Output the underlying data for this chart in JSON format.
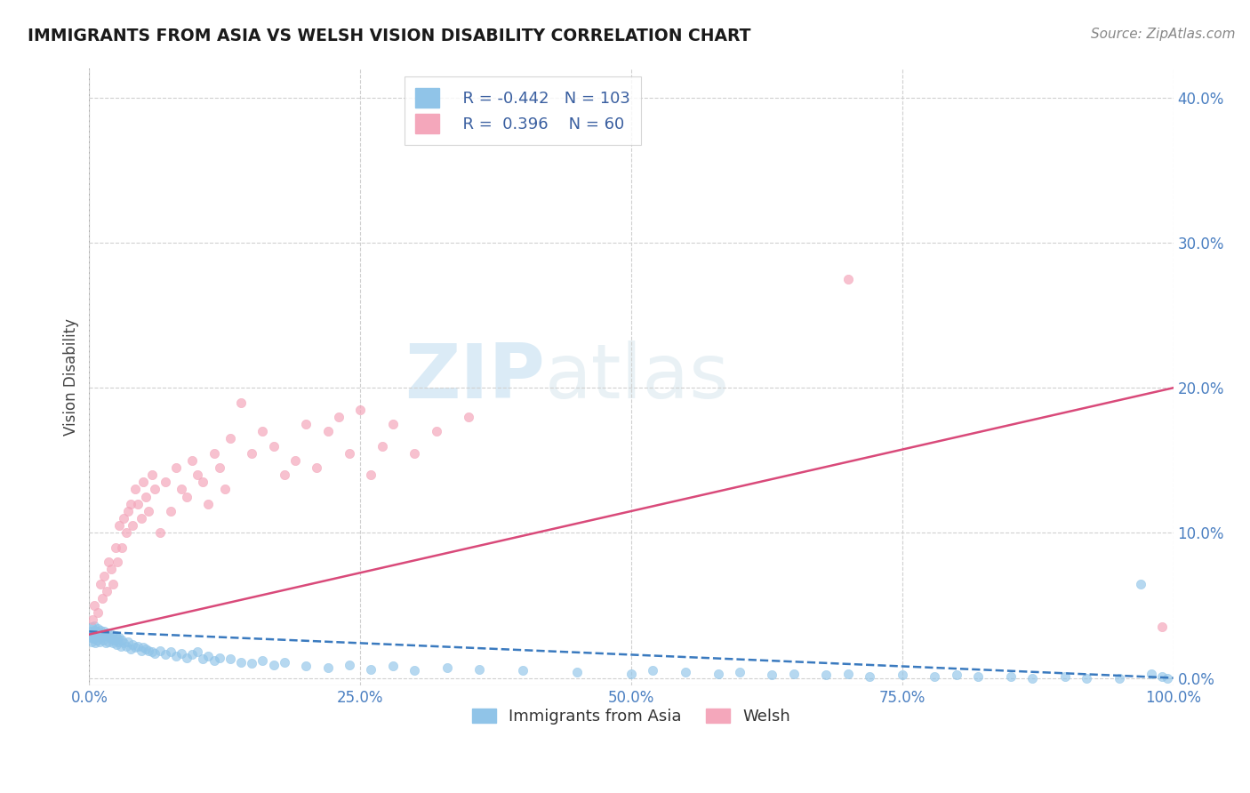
{
  "title": "IMMIGRANTS FROM ASIA VS WELSH VISION DISABILITY CORRELATION CHART",
  "source": "Source: ZipAtlas.com",
  "ylabel": "Vision Disability",
  "legend_label1": "Immigrants from Asia",
  "legend_label2": "Welsh",
  "R1": -0.442,
  "N1": 103,
  "R2": 0.396,
  "N2": 60,
  "color1": "#90c4e8",
  "color2": "#f4a7bb",
  "trend_color1": "#3a7abf",
  "trend_color2": "#d94a7a",
  "xmin": 0.0,
  "xmax": 100.0,
  "ymin": -0.5,
  "ymax": 42.0,
  "yticks": [
    0,
    10,
    20,
    30,
    40
  ],
  "ytick_labels": [
    "0.0%",
    "10.0%",
    "20.0%",
    "30.0%",
    "40.0%"
  ],
  "xticks": [
    0,
    25,
    50,
    75,
    100
  ],
  "xtick_labels": [
    "0.0%",
    "25.0%",
    "50.0%",
    "75.0%",
    "100.0%"
  ],
  "watermark_zip": "ZIP",
  "watermark_atlas": "atlas",
  "background": "#ffffff",
  "grid_color": "#d0d0d0",
  "scatter1_x": [
    0.1,
    0.15,
    0.2,
    0.25,
    0.3,
    0.35,
    0.4,
    0.45,
    0.5,
    0.55,
    0.6,
    0.65,
    0.7,
    0.75,
    0.8,
    0.85,
    0.9,
    0.95,
    1.0,
    1.1,
    1.2,
    1.3,
    1.4,
    1.5,
    1.6,
    1.7,
    1.8,
    1.9,
    2.0,
    2.1,
    2.2,
    2.3,
    2.4,
    2.5,
    2.6,
    2.7,
    2.8,
    2.9,
    3.0,
    3.2,
    3.4,
    3.6,
    3.8,
    4.0,
    4.2,
    4.5,
    4.8,
    5.0,
    5.2,
    5.5,
    5.8,
    6.0,
    6.5,
    7.0,
    7.5,
    8.0,
    8.5,
    9.0,
    9.5,
    10.0,
    10.5,
    11.0,
    11.5,
    12.0,
    13.0,
    14.0,
    15.0,
    16.0,
    17.0,
    18.0,
    20.0,
    22.0,
    24.0,
    26.0,
    28.0,
    30.0,
    33.0,
    36.0,
    40.0,
    45.0,
    50.0,
    52.0,
    55.0,
    58.0,
    60.0,
    63.0,
    65.0,
    68.0,
    70.0,
    72.0,
    75.0,
    78.0,
    80.0,
    82.0,
    85.0,
    87.0,
    90.0,
    92.0,
    95.0,
    97.0,
    99.0,
    99.5,
    98.0
  ],
  "scatter1_y": [
    2.8,
    3.2,
    2.5,
    3.5,
    2.9,
    3.1,
    2.7,
    3.3,
    3.6,
    2.4,
    3.0,
    2.8,
    3.2,
    2.6,
    3.4,
    2.9,
    3.1,
    2.5,
    3.3,
    2.8,
    3.0,
    2.6,
    3.2,
    2.4,
    2.9,
    3.1,
    2.5,
    2.8,
    2.7,
    3.0,
    2.4,
    2.6,
    2.9,
    2.3,
    2.7,
    2.5,
    2.8,
    2.2,
    2.6,
    2.4,
    2.2,
    2.5,
    2.0,
    2.3,
    2.1,
    2.2,
    1.9,
    2.1,
    2.0,
    1.9,
    1.8,
    1.7,
    1.9,
    1.6,
    1.8,
    1.5,
    1.7,
    1.4,
    1.6,
    1.8,
    1.3,
    1.5,
    1.2,
    1.4,
    1.3,
    1.1,
    1.0,
    1.2,
    0.9,
    1.1,
    0.8,
    0.7,
    0.9,
    0.6,
    0.8,
    0.5,
    0.7,
    0.6,
    0.5,
    0.4,
    0.3,
    0.5,
    0.4,
    0.3,
    0.4,
    0.2,
    0.3,
    0.2,
    0.3,
    0.1,
    0.2,
    0.1,
    0.2,
    0.1,
    0.1,
    0.0,
    0.1,
    0.0,
    0.0,
    6.5,
    0.1,
    0.0,
    0.3
  ],
  "scatter2_x": [
    0.3,
    0.5,
    0.8,
    1.0,
    1.2,
    1.4,
    1.6,
    1.8,
    2.0,
    2.2,
    2.4,
    2.6,
    2.8,
    3.0,
    3.2,
    3.4,
    3.6,
    3.8,
    4.0,
    4.2,
    4.5,
    4.8,
    5.0,
    5.2,
    5.5,
    5.8,
    6.0,
    6.5,
    7.0,
    7.5,
    8.0,
    8.5,
    9.0,
    9.5,
    10.0,
    10.5,
    11.0,
    11.5,
    12.0,
    12.5,
    13.0,
    14.0,
    15.0,
    16.0,
    17.0,
    18.0,
    19.0,
    20.0,
    21.0,
    22.0,
    23.0,
    24.0,
    25.0,
    26.0,
    27.0,
    28.0,
    30.0,
    32.0,
    35.0,
    99.0
  ],
  "scatter2_y": [
    4.0,
    5.0,
    4.5,
    6.5,
    5.5,
    7.0,
    6.0,
    8.0,
    7.5,
    6.5,
    9.0,
    8.0,
    10.5,
    9.0,
    11.0,
    10.0,
    11.5,
    12.0,
    10.5,
    13.0,
    12.0,
    11.0,
    13.5,
    12.5,
    11.5,
    14.0,
    13.0,
    10.0,
    13.5,
    11.5,
    14.5,
    13.0,
    12.5,
    15.0,
    14.0,
    13.5,
    12.0,
    15.5,
    14.5,
    13.0,
    16.5,
    19.0,
    15.5,
    17.0,
    16.0,
    14.0,
    15.0,
    17.5,
    14.5,
    17.0,
    18.0,
    15.5,
    18.5,
    14.0,
    16.0,
    17.5,
    15.5,
    17.0,
    18.0,
    3.5
  ],
  "trend1_x0": 0.0,
  "trend1_x1": 100.0,
  "trend1_y0": 3.2,
  "trend1_y1": 0.0,
  "trend2_x0": 0.0,
  "trend2_x1": 100.0,
  "trend2_y0": 3.0,
  "trend2_y1": 20.0,
  "outlier2_x": 70.0,
  "outlier2_y": 27.5
}
